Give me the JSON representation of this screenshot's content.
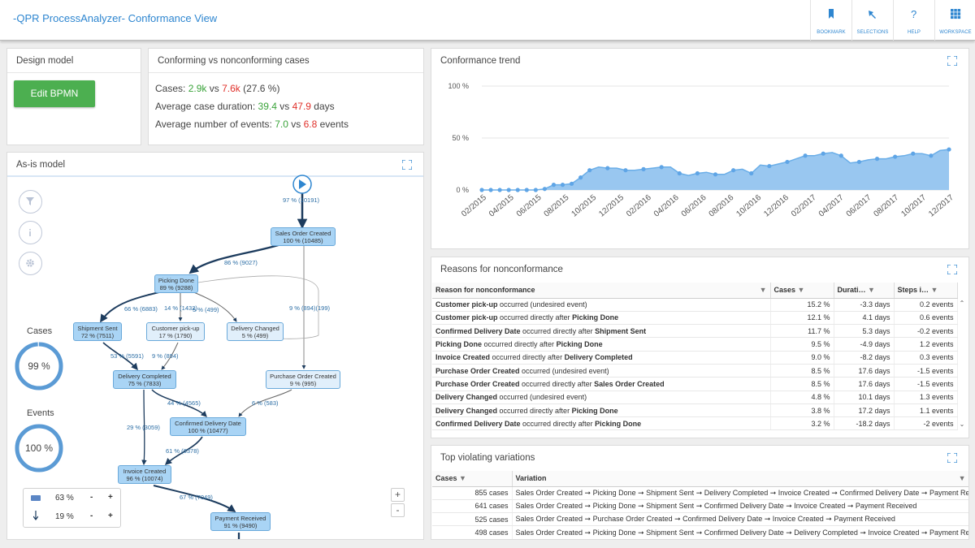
{
  "app": {
    "title": "-QPR ProcessAnalyzer- Conformance View"
  },
  "nav": [
    {
      "label": "BOOKMARK",
      "icon": "bookmark-icon"
    },
    {
      "label": "SELECTIONS",
      "icon": "selections-icon"
    },
    {
      "label": "HELP",
      "icon": "help-icon"
    },
    {
      "label": "WORKSPACE",
      "icon": "workspace-icon"
    }
  ],
  "design": {
    "title": "Design model",
    "button": "Edit BPMN"
  },
  "conf": {
    "title": "Conforming vs nonconforming cases",
    "cases_label": "Cases:",
    "cases_good": "2.9k",
    "vs": "vs",
    "cases_bad": "7.6k",
    "cases_pct": "(27.6 %)",
    "dur_label": "Average case duration:",
    "dur_good": "39.4",
    "dur_bad": "47.9",
    "dur_unit": "days",
    "ev_label": "Average number of events:",
    "ev_good": "7.0",
    "ev_bad": "6.8",
    "ev_unit": "events"
  },
  "chart_data": {
    "type": "area",
    "title": "Conformance trend",
    "ylim": [
      0,
      100
    ],
    "yticks": [
      "0 %",
      "50 %",
      "100 %"
    ],
    "xticks": [
      "02/2015",
      "04/2015",
      "06/2015",
      "08/2015",
      "10/2015",
      "12/2015",
      "02/2016",
      "04/2016",
      "06/2016",
      "08/2016",
      "10/2016",
      "12/2016",
      "02/2017",
      "04/2017",
      "06/2017",
      "08/2017",
      "10/2017",
      "12/2017"
    ],
    "values": [
      0,
      0,
      0,
      0,
      0,
      0,
      0,
      1,
      5,
      5,
      6,
      12,
      19,
      22,
      21,
      21,
      19,
      19,
      20,
      21,
      22,
      22,
      16,
      14,
      16,
      17,
      15,
      15,
      19,
      20,
      16,
      24,
      23,
      25,
      27,
      30,
      33,
      33,
      35,
      36,
      33,
      26,
      27,
      29,
      30,
      30,
      32,
      33,
      35,
      35,
      33,
      38,
      39
    ]
  },
  "asis": {
    "title": "As-is model",
    "cases_title": "Cases",
    "cases_value": "99 %",
    "cases_frac": 0.99,
    "events_title": "Events",
    "events_value": "100 %",
    "events_frac": 1.0,
    "zoom_bar": "63 %",
    "zoom_arrow": "19 %",
    "minus": "-",
    "plus": "+",
    "nodes": [
      {
        "name": "Sales Order Created",
        "stat": "100 % (10485)"
      },
      {
        "name": "Picking Done",
        "stat": "89 % (9288)"
      },
      {
        "name": "Shipment Sent",
        "stat": "72 % (7511)"
      },
      {
        "name": "Customer pick-up",
        "stat": "17 % (1790)"
      },
      {
        "name": "Delivery Changed",
        "stat": "5 % (499)"
      },
      {
        "name": "Delivery Completed",
        "stat": "75 % (7833)"
      },
      {
        "name": "Purchase Order Created",
        "stat": "9 % (995)"
      },
      {
        "name": "Confirmed Delivery Date",
        "stat": "100 % (10477)"
      },
      {
        "name": "Invoice Created",
        "stat": "96 % (10074)"
      },
      {
        "name": "Payment Received",
        "stat": "91 % (9490)"
      }
    ],
    "edges": [
      "97 % (10191)",
      "86 % (9027)",
      "66 % (6883)",
      "14 % (1432)",
      "5 % (499)",
      "9 % (894)(199)",
      "53 % (5591)",
      "9 % (894)",
      "44 % (4565)",
      "6 % (583)",
      "29 % (3059)",
      "61 % (6378)",
      "67 % (7049)"
    ]
  },
  "reasons": {
    "title": "Reasons for nonconformance",
    "headers": [
      "Reason for nonconformance",
      "Cases",
      "Durati…",
      "Steps i…"
    ],
    "rows": [
      {
        "a": "Customer pick-up",
        "mid": " occurred (undesired event)",
        "b": "",
        "cases": "15.2 %",
        "dur": "-3.3 days",
        "steps": "0.2 events"
      },
      {
        "a": "Customer pick-up",
        "mid": " occurred directly after ",
        "b": "Picking Done",
        "cases": "12.1 %",
        "dur": "4.1 days",
        "steps": "0.6 events"
      },
      {
        "a": "Confirmed Delivery Date",
        "mid": " occurred directly after ",
        "b": "Shipment Sent",
        "cases": "11.7 %",
        "dur": "5.3 days",
        "steps": "-0.2 events"
      },
      {
        "a": "Picking Done",
        "mid": " occurred directly after ",
        "b": "Picking Done",
        "cases": "9.5 %",
        "dur": "-4.9 days",
        "steps": "1.2 events"
      },
      {
        "a": "Invoice Created",
        "mid": " occurred directly after ",
        "b": "Delivery Completed",
        "cases": "9.0 %",
        "dur": "-8.2 days",
        "steps": "0.3 events"
      },
      {
        "a": "Purchase Order Created",
        "mid": " occurred (undesired event)",
        "b": "",
        "cases": "8.5 %",
        "dur": "17.6 days",
        "steps": "-1.5 events"
      },
      {
        "a": "Purchase Order Created",
        "mid": " occurred directly after ",
        "b": "Sales Order Created",
        "cases": "8.5 %",
        "dur": "17.6 days",
        "steps": "-1.5 events"
      },
      {
        "a": "Delivery Changed",
        "mid": " occurred (undesired event)",
        "b": "",
        "cases": "4.8 %",
        "dur": "10.1 days",
        "steps": "1.3 events"
      },
      {
        "a": "Delivery Changed",
        "mid": " occurred directly after ",
        "b": "Picking Done",
        "cases": "3.8 %",
        "dur": "17.2 days",
        "steps": "1.1 events"
      },
      {
        "a": "Confirmed Delivery Date",
        "mid": " occurred directly after ",
        "b": "Picking Done",
        "cases": "3.2 %",
        "dur": "-18.2 days",
        "steps": "-2 events"
      }
    ]
  },
  "variations": {
    "title": "Top violating variations",
    "headers": [
      "Cases",
      "Variation"
    ],
    "rows": [
      {
        "cases": "855 cases",
        "path": "Sales Order Created ➞ Picking Done ➞ Shipment Sent ➞ Delivery Completed ➞ Invoice Created ➞ Confirmed Delivery Date ➞ Payment Received"
      },
      {
        "cases": "641 cases",
        "path": "Sales Order Created ➞ Picking Done ➞ Shipment Sent ➞ Confirmed Delivery Date ➞ Invoice Created ➞ Payment Received"
      },
      {
        "cases": "525 cases",
        "path": "Sales Order Created ➞ Purchase Order Created ➞ Confirmed Delivery Date ➞ Invoice Created ➞ Payment Received"
      },
      {
        "cases": "498 cases",
        "path": "Sales Order Created ➞ Picking Done ➞ Shipment Sent ➞ Confirmed Delivery Date ➞ Delivery Completed ➞ Invoice Created ➞ Payment Received"
      }
    ]
  }
}
